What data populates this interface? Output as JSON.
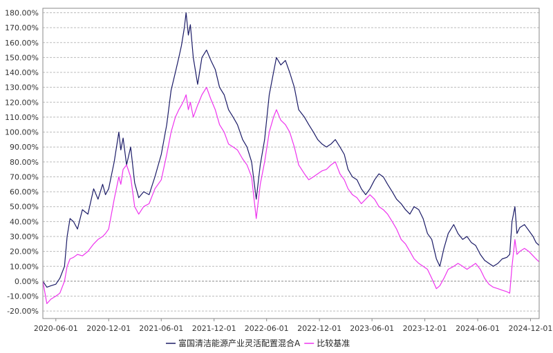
{
  "chart_data": {
    "type": "line",
    "title": "",
    "xlabel": "",
    "ylabel": "",
    "y_unit": "%",
    "ylim": [
      -25,
      183
    ],
    "xlim": [
      "2020-04-17",
      "2024-12-31"
    ],
    "grid": true,
    "legend_position": "bottom",
    "y_ticks": [
      "-20.00%",
      "-10.00%",
      "0.00%",
      "10.00%",
      "20.00%",
      "30.00%",
      "40.00%",
      "50.00%",
      "60.00%",
      "70.00%",
      "80.00%",
      "90.00%",
      "100.00%",
      "110.00%",
      "120.00%",
      "130.00%",
      "140.00%",
      "150.00%",
      "160.00%",
      "170.00%",
      "180.00%"
    ],
    "x_ticks": [
      {
        "date": "2020-06-01",
        "label": "2020-06-01"
      },
      {
        "date": "2020-12-01",
        "label": "2020-12-01"
      },
      {
        "date": "2021-06-01",
        "label": "2021-06-01"
      },
      {
        "date": "2021-12-01",
        "label": "2021-12-01"
      },
      {
        "date": "2022-06-01",
        "label": "2022-06-01"
      },
      {
        "date": "2022-12-01",
        "label": "2022-12-01"
      },
      {
        "date": "2023-06-01",
        "label": "2023-06-01"
      },
      {
        "date": "2023-12-01",
        "label": "2023-12-01"
      },
      {
        "date": "2024-06-01",
        "label": "2024-06-01"
      },
      {
        "date": "2024-12-01",
        "label": "2024-12-01"
      }
    ],
    "series": [
      {
        "name": "富国清洁能源产业灵活配置混合A",
        "color": "#1a1a66",
        "points": [
          [
            "2020-04-17",
            0
          ],
          [
            "2020-05-01",
            -4
          ],
          [
            "2020-05-15",
            -3
          ],
          [
            "2020-06-01",
            -2
          ],
          [
            "2020-06-15",
            2
          ],
          [
            "2020-07-01",
            10
          ],
          [
            "2020-07-10",
            30
          ],
          [
            "2020-07-20",
            42
          ],
          [
            "2020-08-01",
            40
          ],
          [
            "2020-08-15",
            35
          ],
          [
            "2020-09-01",
            48
          ],
          [
            "2020-09-20",
            45
          ],
          [
            "2020-10-10",
            62
          ],
          [
            "2020-10-25",
            55
          ],
          [
            "2020-11-10",
            65
          ],
          [
            "2020-11-20",
            58
          ],
          [
            "2020-12-01",
            62
          ],
          [
            "2020-12-20",
            80
          ],
          [
            "2021-01-05",
            100
          ],
          [
            "2021-01-12",
            88
          ],
          [
            "2021-01-20",
            96
          ],
          [
            "2021-02-01",
            78
          ],
          [
            "2021-02-15",
            90
          ],
          [
            "2021-03-01",
            66
          ],
          [
            "2021-03-15",
            56
          ],
          [
            "2021-04-01",
            60
          ],
          [
            "2021-04-20",
            58
          ],
          [
            "2021-05-10",
            70
          ],
          [
            "2021-06-01",
            85
          ],
          [
            "2021-06-20",
            105
          ],
          [
            "2021-07-05",
            128
          ],
          [
            "2021-07-20",
            140
          ],
          [
            "2021-08-01",
            150
          ],
          [
            "2021-08-10",
            158
          ],
          [
            "2021-08-20",
            170
          ],
          [
            "2021-08-26",
            180
          ],
          [
            "2021-09-03",
            165
          ],
          [
            "2021-09-10",
            172
          ],
          [
            "2021-09-20",
            150
          ],
          [
            "2021-10-05",
            132
          ],
          [
            "2021-10-20",
            150
          ],
          [
            "2021-11-05",
            155
          ],
          [
            "2021-11-20",
            148
          ],
          [
            "2021-12-05",
            142
          ],
          [
            "2021-12-20",
            130
          ],
          [
            "2022-01-05",
            125
          ],
          [
            "2022-01-20",
            115
          ],
          [
            "2022-02-05",
            110
          ],
          [
            "2022-02-20",
            105
          ],
          [
            "2022-03-10",
            95
          ],
          [
            "2022-03-25",
            90
          ],
          [
            "2022-04-10",
            80
          ],
          [
            "2022-04-26",
            55
          ],
          [
            "2022-05-10",
            78
          ],
          [
            "2022-05-25",
            95
          ],
          [
            "2022-06-10",
            125
          ],
          [
            "2022-06-25",
            140
          ],
          [
            "2022-07-05",
            150
          ],
          [
            "2022-07-20",
            145
          ],
          [
            "2022-08-05",
            148
          ],
          [
            "2022-08-20",
            140
          ],
          [
            "2022-09-05",
            130
          ],
          [
            "2022-09-20",
            115
          ],
          [
            "2022-10-10",
            110
          ],
          [
            "2022-10-25",
            105
          ],
          [
            "2022-11-10",
            100
          ],
          [
            "2022-11-25",
            95
          ],
          [
            "2022-12-10",
            92
          ],
          [
            "2022-12-25",
            90
          ],
          [
            "2023-01-10",
            92
          ],
          [
            "2023-01-25",
            95
          ],
          [
            "2023-02-10",
            90
          ],
          [
            "2023-02-25",
            85
          ],
          [
            "2023-03-10",
            75
          ],
          [
            "2023-03-25",
            70
          ],
          [
            "2023-04-10",
            68
          ],
          [
            "2023-04-25",
            62
          ],
          [
            "2023-05-10",
            58
          ],
          [
            "2023-05-25",
            62
          ],
          [
            "2023-06-10",
            68
          ],
          [
            "2023-06-25",
            72
          ],
          [
            "2023-07-10",
            70
          ],
          [
            "2023-07-25",
            65
          ],
          [
            "2023-08-10",
            60
          ],
          [
            "2023-08-25",
            55
          ],
          [
            "2023-09-10",
            52
          ],
          [
            "2023-09-25",
            48
          ],
          [
            "2023-10-10",
            45
          ],
          [
            "2023-10-25",
            50
          ],
          [
            "2023-11-10",
            48
          ],
          [
            "2023-11-25",
            42
          ],
          [
            "2023-12-10",
            32
          ],
          [
            "2023-12-25",
            28
          ],
          [
            "2024-01-10",
            15
          ],
          [
            "2024-01-22",
            10
          ],
          [
            "2024-02-05",
            22
          ],
          [
            "2024-02-20",
            32
          ],
          [
            "2024-03-10",
            38
          ],
          [
            "2024-03-25",
            32
          ],
          [
            "2024-04-10",
            28
          ],
          [
            "2024-04-25",
            30
          ],
          [
            "2024-05-10",
            26
          ],
          [
            "2024-05-25",
            24
          ],
          [
            "2024-06-10",
            18
          ],
          [
            "2024-06-25",
            14
          ],
          [
            "2024-07-10",
            12
          ],
          [
            "2024-07-25",
            10
          ],
          [
            "2024-08-10",
            12
          ],
          [
            "2024-08-25",
            15
          ],
          [
            "2024-09-10",
            16
          ],
          [
            "2024-09-20",
            18
          ],
          [
            "2024-09-28",
            40
          ],
          [
            "2024-10-08",
            50
          ],
          [
            "2024-10-15",
            32
          ],
          [
            "2024-10-25",
            36
          ],
          [
            "2024-11-10",
            38
          ],
          [
            "2024-11-25",
            34
          ],
          [
            "2024-12-10",
            30
          ],
          [
            "2024-12-20",
            26
          ],
          [
            "2024-12-31",
            24
          ]
        ]
      },
      {
        "name": "比较基准",
        "color": "#ee33ee",
        "points": [
          [
            "2020-04-17",
            0
          ],
          [
            "2020-05-01",
            -15
          ],
          [
            "2020-05-15",
            -12
          ],
          [
            "2020-06-01",
            -10
          ],
          [
            "2020-06-15",
            -8
          ],
          [
            "2020-07-01",
            0
          ],
          [
            "2020-07-10",
            10
          ],
          [
            "2020-07-20",
            15
          ],
          [
            "2020-08-01",
            16
          ],
          [
            "2020-08-15",
            18
          ],
          [
            "2020-09-01",
            17
          ],
          [
            "2020-09-20",
            20
          ],
          [
            "2020-10-10",
            25
          ],
          [
            "2020-10-25",
            28
          ],
          [
            "2020-11-10",
            30
          ],
          [
            "2020-11-20",
            32
          ],
          [
            "2020-12-01",
            35
          ],
          [
            "2020-12-20",
            55
          ],
          [
            "2021-01-05",
            70
          ],
          [
            "2021-01-12",
            65
          ],
          [
            "2021-01-20",
            75
          ],
          [
            "2021-02-01",
            78
          ],
          [
            "2021-02-15",
            70
          ],
          [
            "2021-03-01",
            50
          ],
          [
            "2021-03-15",
            45
          ],
          [
            "2021-04-01",
            50
          ],
          [
            "2021-04-20",
            52
          ],
          [
            "2021-05-10",
            62
          ],
          [
            "2021-06-01",
            68
          ],
          [
            "2021-06-20",
            85
          ],
          [
            "2021-07-05",
            100
          ],
          [
            "2021-07-20",
            110
          ],
          [
            "2021-08-01",
            115
          ],
          [
            "2021-08-10",
            118
          ],
          [
            "2021-08-20",
            122
          ],
          [
            "2021-08-26",
            125
          ],
          [
            "2021-09-03",
            115
          ],
          [
            "2021-09-10",
            120
          ],
          [
            "2021-09-20",
            110
          ],
          [
            "2021-10-05",
            118
          ],
          [
            "2021-10-20",
            125
          ],
          [
            "2021-11-05",
            130
          ],
          [
            "2021-11-20",
            122
          ],
          [
            "2021-12-05",
            115
          ],
          [
            "2021-12-20",
            105
          ],
          [
            "2022-01-05",
            100
          ],
          [
            "2022-01-20",
            92
          ],
          [
            "2022-02-05",
            90
          ],
          [
            "2022-02-20",
            88
          ],
          [
            "2022-03-10",
            82
          ],
          [
            "2022-03-25",
            78
          ],
          [
            "2022-04-10",
            70
          ],
          [
            "2022-04-26",
            42
          ],
          [
            "2022-05-10",
            65
          ],
          [
            "2022-05-25",
            80
          ],
          [
            "2022-06-10",
            100
          ],
          [
            "2022-06-25",
            110
          ],
          [
            "2022-07-05",
            115
          ],
          [
            "2022-07-20",
            108
          ],
          [
            "2022-08-05",
            105
          ],
          [
            "2022-08-20",
            100
          ],
          [
            "2022-09-05",
            90
          ],
          [
            "2022-09-20",
            78
          ],
          [
            "2022-10-10",
            72
          ],
          [
            "2022-10-25",
            68
          ],
          [
            "2022-11-10",
            70
          ],
          [
            "2022-11-25",
            72
          ],
          [
            "2022-12-10",
            74
          ],
          [
            "2022-12-25",
            75
          ],
          [
            "2023-01-10",
            78
          ],
          [
            "2023-01-25",
            80
          ],
          [
            "2023-02-10",
            72
          ],
          [
            "2023-02-25",
            68
          ],
          [
            "2023-03-10",
            62
          ],
          [
            "2023-03-25",
            58
          ],
          [
            "2023-04-10",
            56
          ],
          [
            "2023-04-25",
            52
          ],
          [
            "2023-05-10",
            55
          ],
          [
            "2023-05-25",
            58
          ],
          [
            "2023-06-10",
            55
          ],
          [
            "2023-06-25",
            50
          ],
          [
            "2023-07-10",
            48
          ],
          [
            "2023-07-25",
            45
          ],
          [
            "2023-08-10",
            40
          ],
          [
            "2023-08-25",
            35
          ],
          [
            "2023-09-10",
            28
          ],
          [
            "2023-09-25",
            25
          ],
          [
            "2023-10-10",
            20
          ],
          [
            "2023-10-25",
            15
          ],
          [
            "2023-11-10",
            12
          ],
          [
            "2023-11-25",
            10
          ],
          [
            "2023-12-10",
            8
          ],
          [
            "2023-12-25",
            2
          ],
          [
            "2024-01-10",
            -5
          ],
          [
            "2024-01-22",
            -3
          ],
          [
            "2024-02-05",
            2
          ],
          [
            "2024-02-20",
            8
          ],
          [
            "2024-03-10",
            10
          ],
          [
            "2024-03-25",
            12
          ],
          [
            "2024-04-10",
            10
          ],
          [
            "2024-04-25",
            8
          ],
          [
            "2024-05-10",
            10
          ],
          [
            "2024-05-25",
            12
          ],
          [
            "2024-06-10",
            8
          ],
          [
            "2024-06-25",
            2
          ],
          [
            "2024-07-10",
            -2
          ],
          [
            "2024-07-25",
            -4
          ],
          [
            "2024-08-10",
            -5
          ],
          [
            "2024-08-25",
            -6
          ],
          [
            "2024-09-10",
            -7
          ],
          [
            "2024-09-20",
            -8
          ],
          [
            "2024-09-28",
            10
          ],
          [
            "2024-10-08",
            28
          ],
          [
            "2024-10-15",
            18
          ],
          [
            "2024-10-25",
            20
          ],
          [
            "2024-11-10",
            22
          ],
          [
            "2024-11-25",
            20
          ],
          [
            "2024-12-10",
            17
          ],
          [
            "2024-12-20",
            15
          ],
          [
            "2024-12-31",
            13
          ]
        ]
      }
    ]
  }
}
